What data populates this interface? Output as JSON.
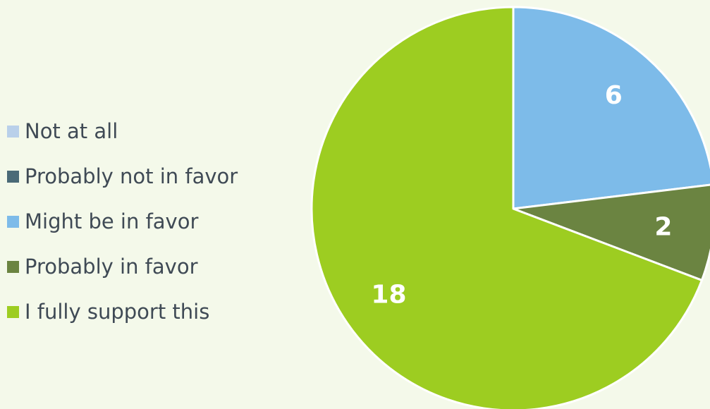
{
  "chart_data": {
    "type": "pie",
    "legend_position": "left",
    "categories": [
      "Not at all",
      "Probably not in favor",
      "Might be in favor",
      "Probably in favor",
      "I fully support this"
    ],
    "values": [
      0,
      0,
      6,
      2,
      18
    ],
    "colors": [
      "#b9d0ea",
      "#4a6a77",
      "#7dbbe9",
      "#6b8441",
      "#9dcd21"
    ],
    "data_labels": [
      "",
      "",
      "6",
      "2",
      "18"
    ],
    "title": ""
  },
  "theme": {
    "background": "#f4f9ea",
    "slice_border": "#ffffff",
    "label_color": "#ffffff",
    "legend_text_color": "#3f4a55"
  }
}
